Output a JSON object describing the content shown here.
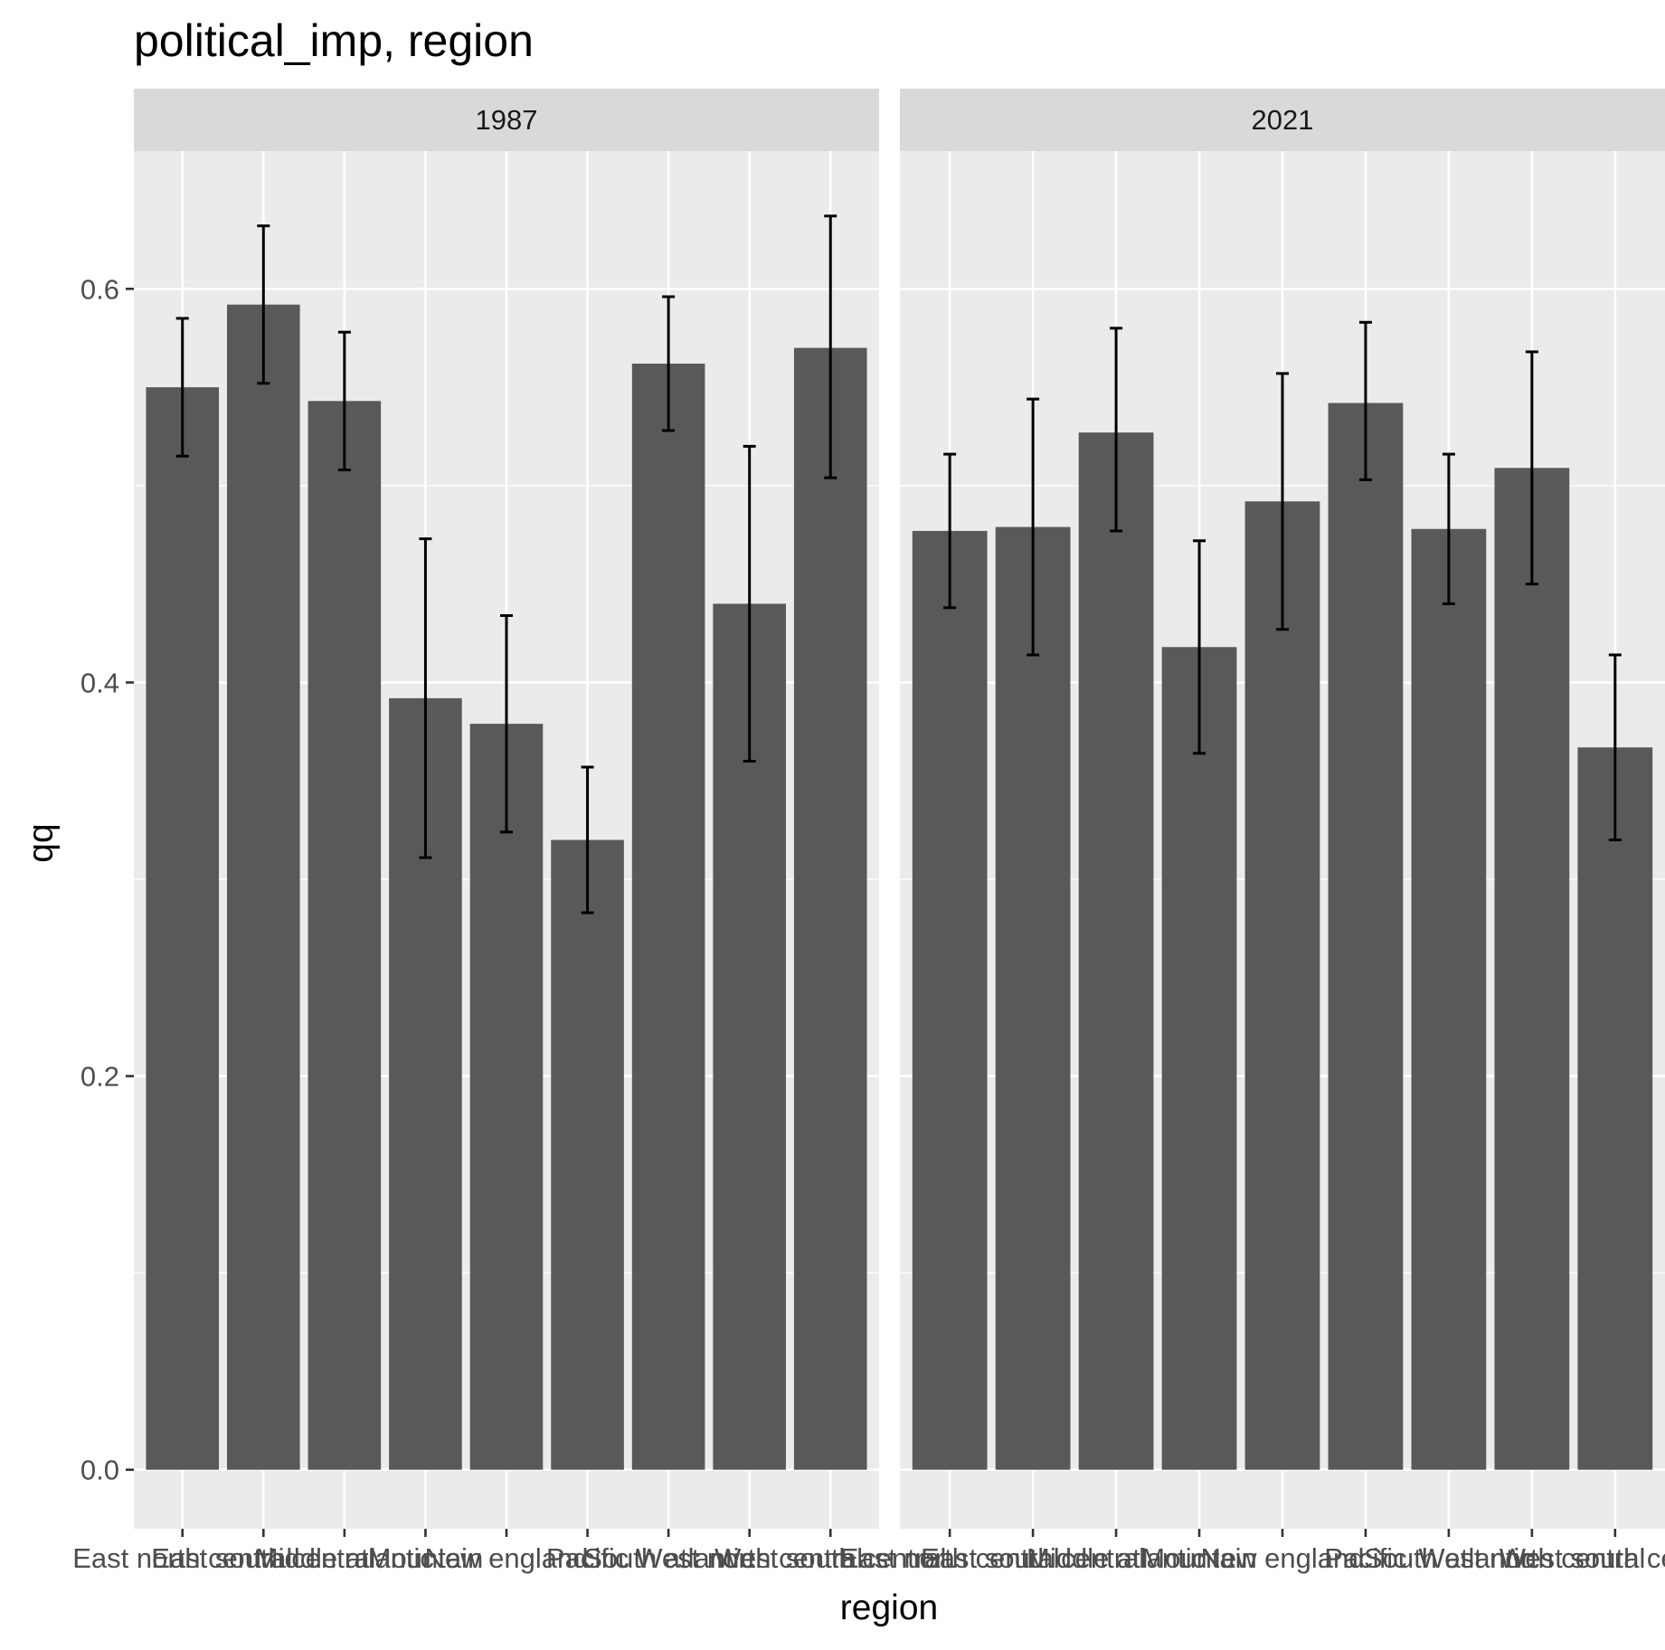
{
  "chart_data": {
    "type": "bar",
    "title": "political_imp, region",
    "xlabel": "region",
    "ylabel": "qq",
    "ylim": [
      -0.03,
      0.67
    ],
    "yticks": [
      0.0,
      0.2,
      0.4,
      0.6
    ],
    "ytick_labels": [
      "0.0",
      "0.2",
      "0.4",
      "0.6"
    ],
    "grid": true,
    "facets": [
      "1987",
      "2021"
    ],
    "categories": [
      "East north central",
      "East south central",
      "Middle atlantic",
      "Mountain",
      "New england",
      "Pacific",
      "South atlantic",
      "West north central",
      "West south central"
    ],
    "series": [
      {
        "facet": "1987",
        "values": [
          0.55,
          0.592,
          0.543,
          0.392,
          0.379,
          0.32,
          0.562,
          0.44,
          0.57
        ],
        "lower": [
          0.515,
          0.552,
          0.508,
          0.311,
          0.324,
          0.283,
          0.528,
          0.36,
          0.504
        ],
        "upper": [
          0.585,
          0.632,
          0.578,
          0.473,
          0.434,
          0.357,
          0.596,
          0.52,
          0.637
        ]
      },
      {
        "facet": "2021",
        "values": [
          0.477,
          0.479,
          0.527,
          0.418,
          0.492,
          0.542,
          0.478,
          0.509,
          0.367
        ],
        "lower": [
          0.438,
          0.414,
          0.477,
          0.364,
          0.427,
          0.503,
          0.44,
          0.45,
          0.32
        ],
        "upper": [
          0.516,
          0.544,
          0.58,
          0.472,
          0.557,
          0.583,
          0.516,
          0.568,
          0.414
        ]
      }
    ],
    "colors": {
      "bar": "#595959",
      "errorbar": "#000000",
      "panel": "#ebebeb",
      "grid": "#ffffff",
      "strip": "#d9d9d9"
    }
  }
}
